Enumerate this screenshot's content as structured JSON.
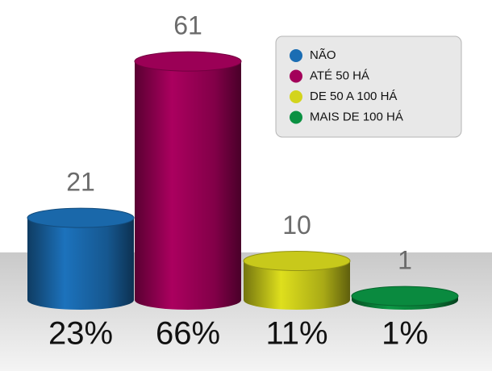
{
  "chart_data": {
    "type": "cylinder",
    "categories": [
      "NÃO",
      "ATÉ 50 HÁ",
      "DE 50 A 100 HÁ",
      "MAIS DE 100 HÁ"
    ],
    "colors": [
      "#1b6db3",
      "#a3005a",
      "#d3d41c",
      "#0b9142"
    ],
    "values": [
      21,
      61,
      10,
      1
    ],
    "percents": [
      23,
      66,
      11,
      1
    ],
    "percent_labels": [
      "23%",
      "66%",
      "11%",
      "1%"
    ]
  }
}
